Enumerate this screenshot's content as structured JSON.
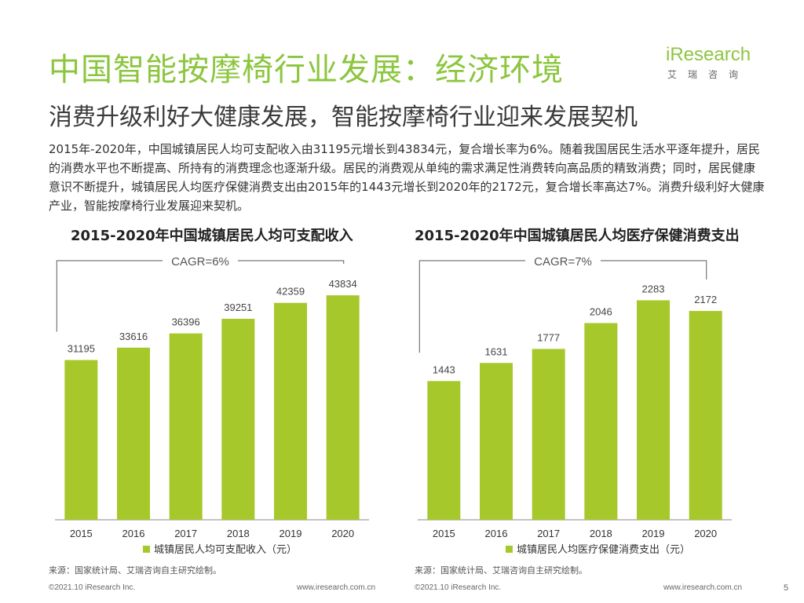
{
  "header": {
    "title": "中国智能按摩椅行业发展：经济环境",
    "subtitle": "消费升级利好大健康发展，智能按摩椅行业迎来发展契机",
    "logo_brand": "iResearch",
    "logo_cn": "艾瑞咨询"
  },
  "body_text": "2015年-2020年，中国城镇居民人均可支配收入由31195元增长到43834元，复合增长率为6%。随着我国居民生活水平逐年提升，居民的消费水平也不断提高、所持有的消费理念也逐渐升级。居民的消费观从单纯的需求满足性消费转向高品质的精致消费；同时，居民健康意识不断提升，城镇居民人均医疗保健消费支出由2015年的1443元增长到2020年的2172元，复合增长率高达7%。消费升级利好大健康产业，智能按摩椅行业发展迎来契机。",
  "chart_data": [
    {
      "type": "bar",
      "title": "2015-2020年中国城镇居民人均可支配收入",
      "categories": [
        "2015",
        "2016",
        "2017",
        "2018",
        "2019",
        "2020"
      ],
      "series": [
        {
          "name": "城镇居民人均可支配收入（元）",
          "values": [
            31195,
            33616,
            36396,
            39251,
            42359,
            43834
          ]
        }
      ],
      "annotation": "CAGR=6%",
      "ylim": [
        0,
        46000
      ],
      "color": "#a6c82b",
      "legend": "bottom"
    },
    {
      "type": "bar",
      "title": "2015-2020年中国城镇居民人均医疗保健消费支出",
      "categories": [
        "2015",
        "2016",
        "2017",
        "2018",
        "2019",
        "2020"
      ],
      "series": [
        {
          "name": "城镇居民人均医疗保健消费支出（元）",
          "values": [
            1443,
            1631,
            1777,
            2046,
            2283,
            2172
          ]
        }
      ],
      "annotation": "CAGR=7%",
      "ylim": [
        0,
        2450
      ],
      "color": "#a6c82b",
      "legend": "bottom"
    }
  ],
  "sources": [
    "来源：国家统计局、艾瑞咨询自主研究绘制。",
    "来源：国家统计局、艾瑞咨询自主研究绘制。"
  ],
  "footer": {
    "copyright_left": "©2021.10 iResearch Inc.",
    "url_left": "www.iresearch.com.cn",
    "copyright_right": "©2021.10 iResearch Inc.",
    "url_right": "www.iresearch.com.cn",
    "page_number": "5"
  }
}
